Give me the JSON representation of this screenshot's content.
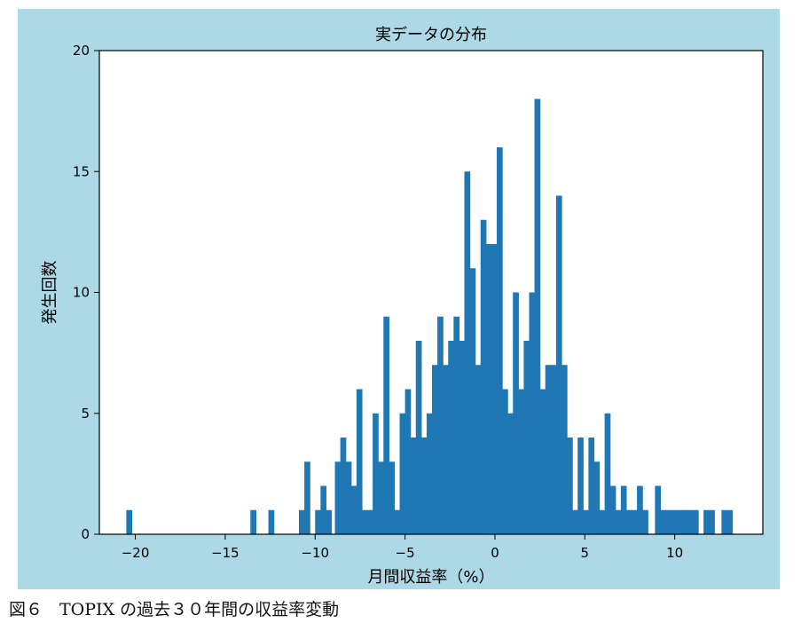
{
  "caption": "図６　TOPIX の過去３０年間の収益率変動",
  "chart_data": {
    "type": "bar",
    "title": "実データの分布",
    "xlabel": "月間収益率（%）",
    "ylabel": "発生回数",
    "xlim": [
      -22,
      14.9
    ],
    "ylim": [
      0,
      20
    ],
    "xticks": [
      -20,
      -15,
      -10,
      -5,
      0,
      5,
      10
    ],
    "xtick_labels": [
      "−20",
      "−15",
      "−10",
      "−5",
      "0",
      "5",
      "10"
    ],
    "yticks": [
      0,
      5,
      10,
      15,
      20
    ],
    "ytick_labels": [
      "0",
      "5",
      "10",
      "15",
      "20"
    ],
    "bar_color": "#1f77b4",
    "background": "#add8e6",
    "plot_background": "#ffffff",
    "grid": false,
    "bin_width": 0.33,
    "bin_left_edges": [
      -20.5,
      -13.6,
      -12.6,
      -10.9,
      -10.6,
      -10.0,
      -9.7,
      -9.4,
      -8.9,
      -8.6,
      -8.3,
      -8.0,
      -7.7,
      -7.4,
      -7.1,
      -6.8,
      -6.5,
      -6.2,
      -5.9,
      -5.6,
      -5.3,
      -5.0,
      -4.7,
      -4.4,
      -4.1,
      -3.8,
      -3.5,
      -3.2,
      -2.9,
      -2.6,
      -2.3,
      -2.0,
      -1.7,
      -1.4,
      -1.1,
      -0.8,
      -0.5,
      -0.2,
      0.1,
      0.4,
      0.7,
      1.0,
      1.3,
      1.6,
      1.9,
      2.2,
      2.5,
      2.8,
      3.1,
      3.4,
      3.7,
      4.0,
      4.3,
      4.6,
      4.9,
      5.2,
      5.5,
      5.8,
      6.1,
      6.4,
      6.7,
      7.0,
      7.3,
      7.6,
      7.9,
      8.2,
      8.9,
      9.2,
      9.5,
      9.8,
      10.1,
      10.4,
      10.7,
      11.0,
      11.6,
      11.9,
      12.6,
      12.9
    ],
    "values": [
      1,
      1,
      1,
      1,
      3,
      1,
      2,
      1,
      3,
      4,
      3,
      2,
      6,
      1,
      1,
      5,
      3,
      9,
      3,
      1,
      5,
      6,
      4,
      8,
      4,
      5,
      7,
      9,
      7,
      8,
      9,
      8,
      15,
      11,
      7,
      13,
      12,
      12,
      16,
      6,
      5,
      10,
      6,
      8,
      10,
      18,
      6,
      7,
      7,
      14,
      7,
      4,
      1,
      4,
      1,
      4,
      3,
      1,
      5,
      2,
      1,
      2,
      1,
      1,
      2,
      1,
      2,
      1,
      1,
      1,
      1,
      1,
      1,
      1,
      1,
      1,
      1,
      1
    ]
  }
}
